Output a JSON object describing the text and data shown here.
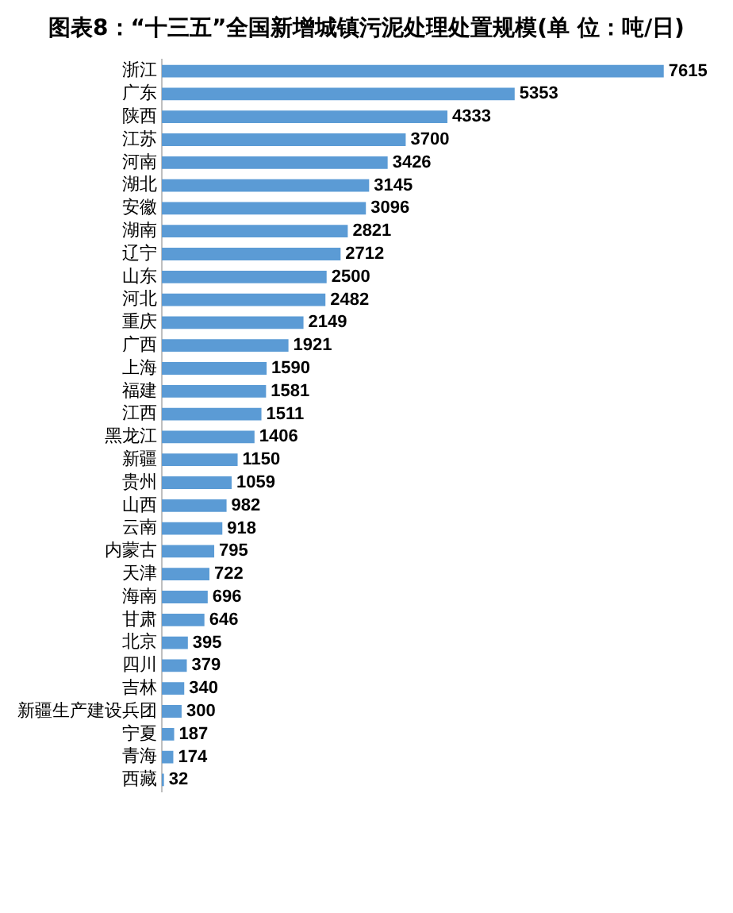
{
  "chart_data": {
    "type": "bar",
    "orientation": "horizontal",
    "title": "图表8：“十三五”全国新增城镇污泥处理处置规模(单 位：吨/日)",
    "categories": [
      "浙江",
      "广东",
      "陕西",
      "江苏",
      "河南",
      "湖北",
      "安徽",
      "湖南",
      "辽宁",
      "山东",
      "河北",
      "重庆",
      "广西",
      "上海",
      "福建",
      "江西",
      "黑龙江",
      "新疆",
      "贵州",
      "山西",
      "云南",
      "内蒙古",
      "天津",
      "海南",
      "甘肃",
      "北京",
      "四川",
      "吉林",
      "新疆生产建设兵团",
      "宁夏",
      "青海",
      "西藏"
    ],
    "values": [
      7615,
      5353,
      4333,
      3700,
      3426,
      3145,
      3096,
      2821,
      2712,
      2500,
      2482,
      2149,
      1921,
      1590,
      1581,
      1511,
      1406,
      1150,
      1059,
      982,
      918,
      795,
      722,
      696,
      646,
      395,
      379,
      340,
      300,
      187,
      174,
      32
    ],
    "color": "#5b9bd5",
    "data_labels": true,
    "tick_labels": "y"
  }
}
